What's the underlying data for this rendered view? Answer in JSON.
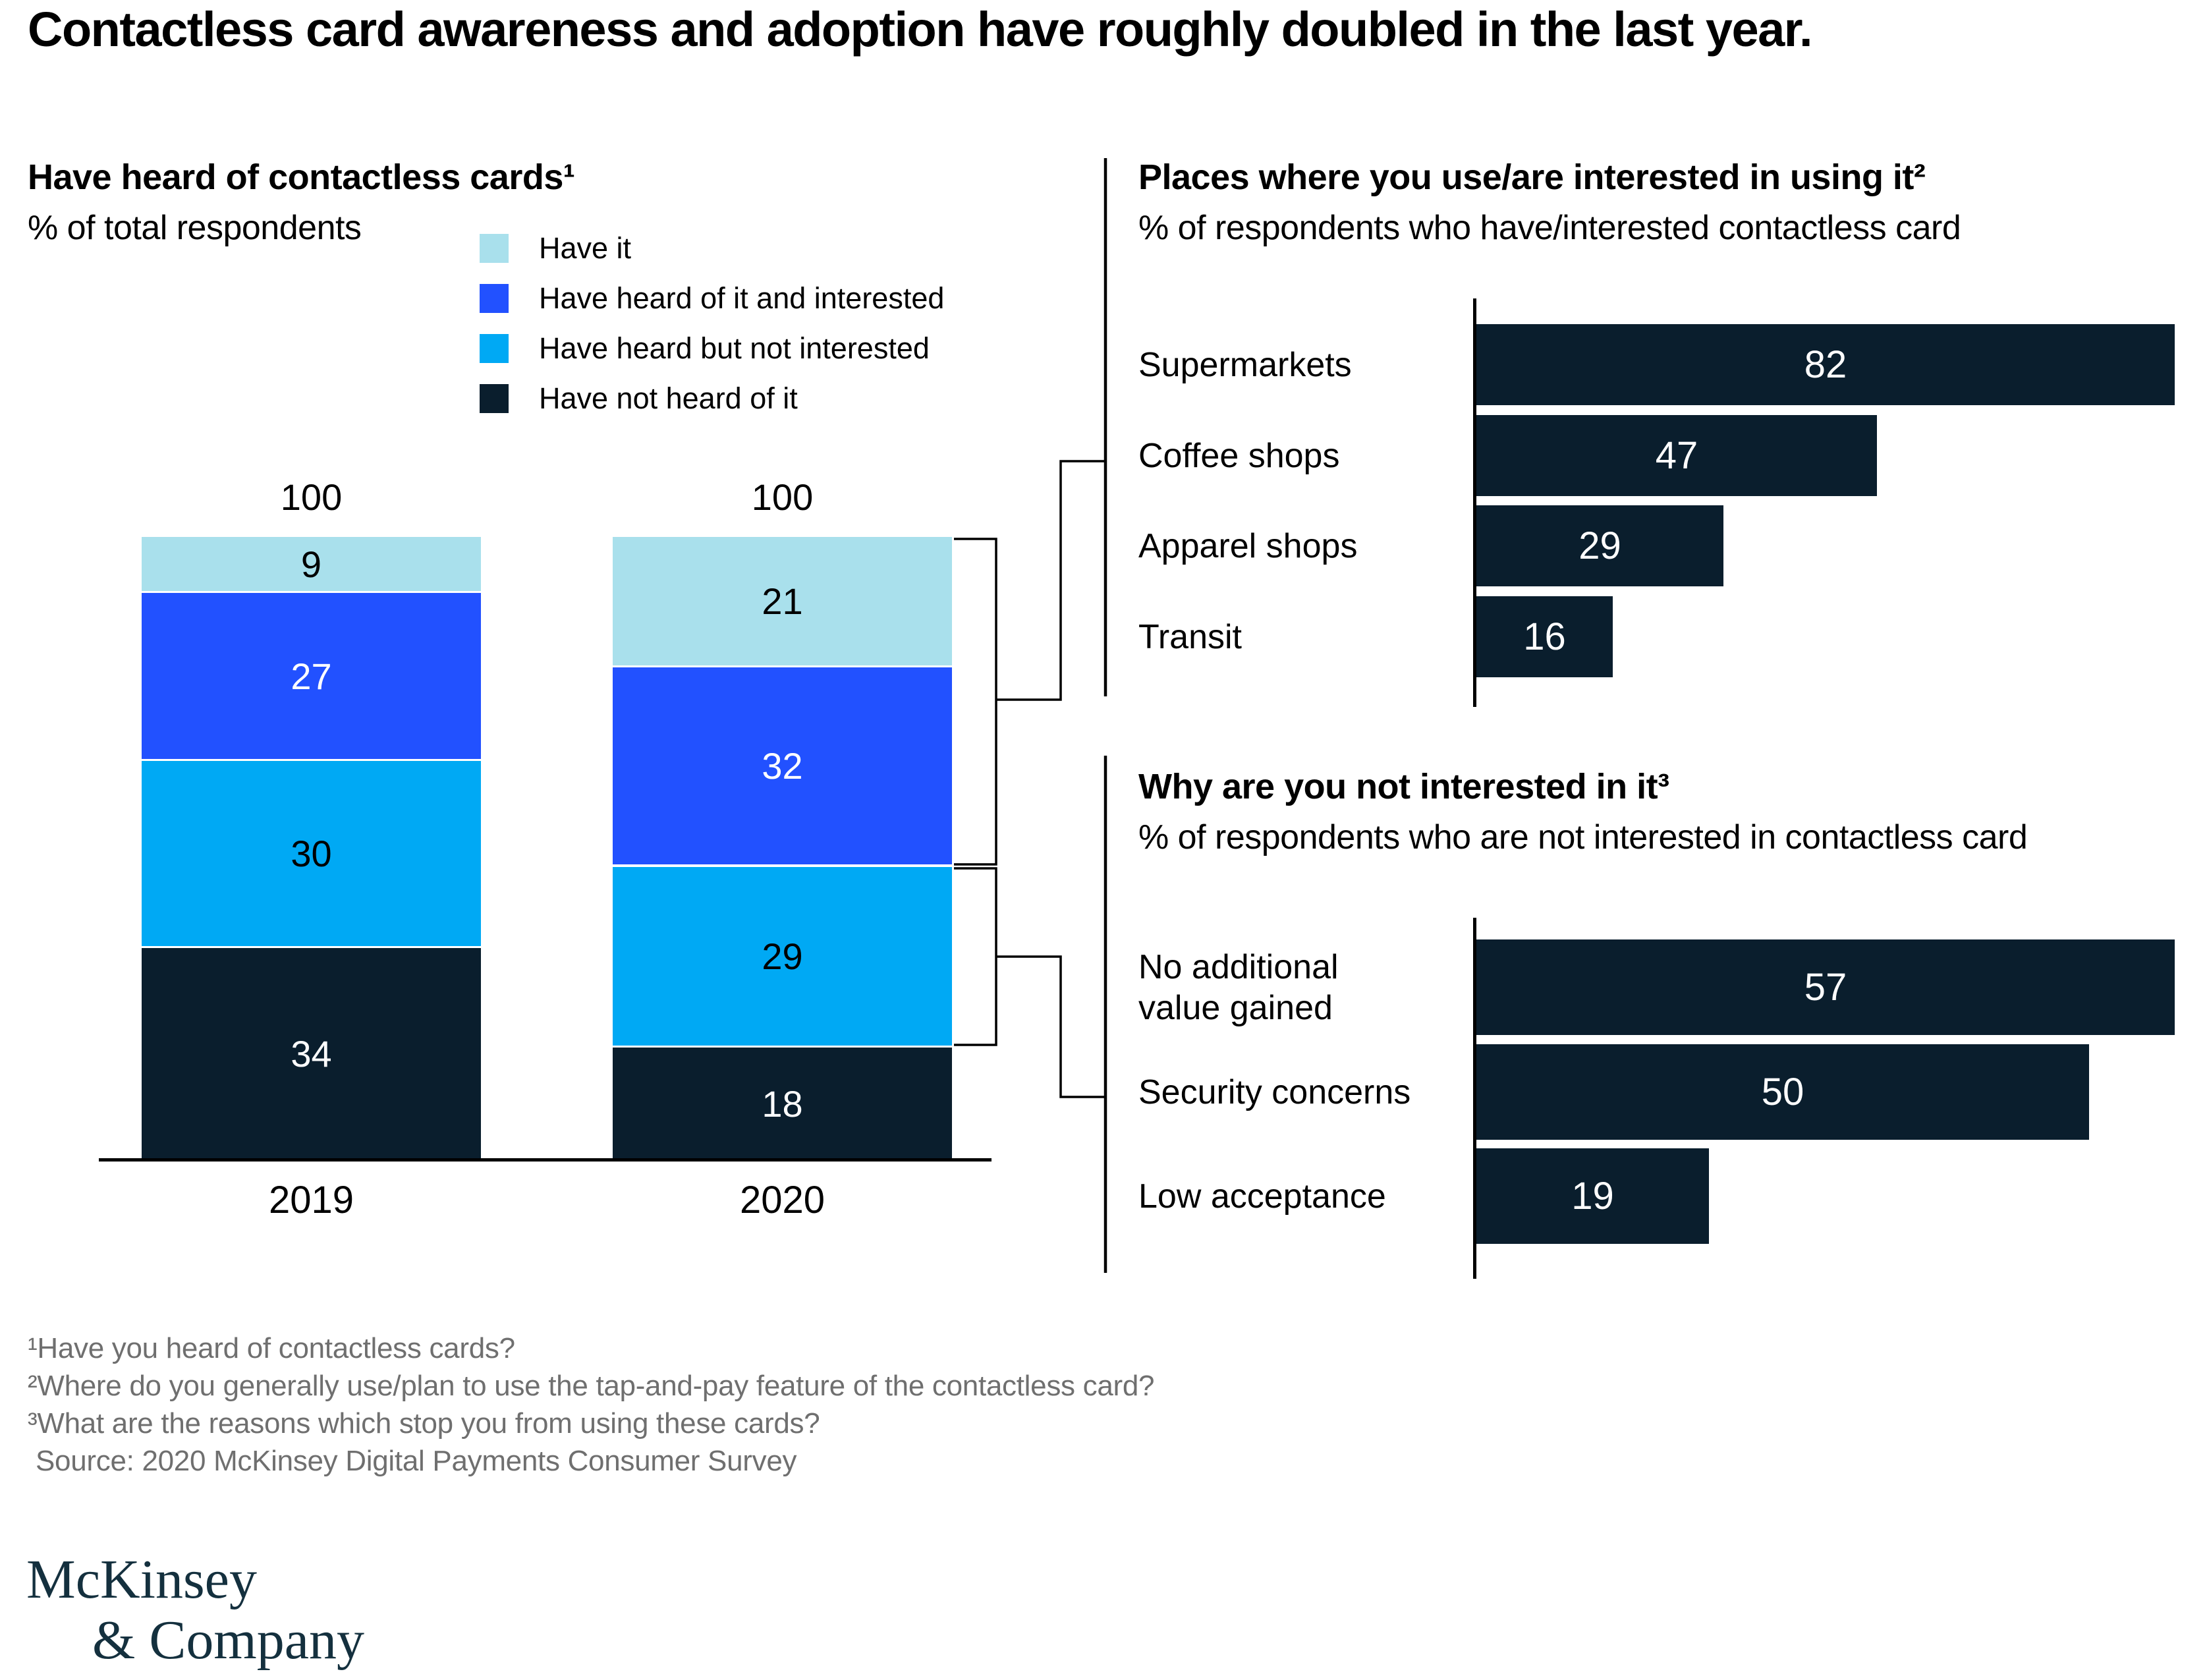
{
  "title": "Contactless card awareness and adoption have roughly doubled in the last year.",
  "colors": {
    "navy": "#0A1E2D",
    "blue": "#2251FF",
    "cyan": "#00A9F4",
    "light_cyan": "#A9E0EC",
    "footnote_gray": "#6F6F6F",
    "logo_navy": "#14303E"
  },
  "chart_data": [
    {
      "type": "bar",
      "variant": "stacked-column",
      "title": "Have heard of contactless cards¹",
      "subtitle": "% of total respondents",
      "categories": [
        "2019",
        "2020"
      ],
      "totals": [
        "100",
        "100"
      ],
      "series": [
        {
          "name": "Have it",
          "values": [
            9,
            21
          ],
          "color": "#A9E0EC",
          "label_color": "#000000"
        },
        {
          "name": "Have heard of it and interested",
          "values": [
            27,
            32
          ],
          "color": "#2251FF",
          "label_color": "#FFFFFF"
        },
        {
          "name": "Have heard but not interested",
          "values": [
            30,
            29
          ],
          "color": "#00A9F4",
          "label_color": "#000000"
        },
        {
          "name": "Have not heard of it",
          "values": [
            34,
            18
          ],
          "color": "#0A1E2D",
          "label_color": "#FFFFFF"
        }
      ],
      "ylim": [
        0,
        100
      ],
      "grid": false,
      "legend_position": "top-right"
    },
    {
      "type": "bar",
      "variant": "horizontal",
      "title": "Places where you use/are interested in using it²",
      "subtitle": "% of respondents who have/interested contactless card",
      "categories": [
        "Supermarkets",
        "Coffee shops",
        "Apparel shops",
        "Transit"
      ],
      "values": [
        82,
        47,
        29,
        16
      ],
      "xlim": [
        0,
        82
      ],
      "bar_color": "#0A1E2D",
      "value_label_color": "#FFFFFF",
      "grid": false
    },
    {
      "type": "bar",
      "variant": "horizontal",
      "title": "Why are you not interested in it³",
      "subtitle": "% of respondents who are not interested in contactless card",
      "categories": [
        "No additional\nvalue gained",
        "Security concerns",
        "Low acceptance"
      ],
      "values": [
        57,
        50,
        19
      ],
      "xlim": [
        0,
        57
      ],
      "bar_color": "#0A1E2D",
      "value_label_color": "#FFFFFF",
      "grid": false
    }
  ],
  "footnotes": [
    "¹Have you heard of contactless cards?",
    "²Where do you generally use/plan to use the tap-and-pay feature of the contactless card?",
    "³What are the reasons which stop you from using these cards?",
    "Source: 2020 McKinsey Digital Payments Consumer Survey"
  ],
  "logo": {
    "line1": "McKinsey",
    "line2": "& Company"
  }
}
